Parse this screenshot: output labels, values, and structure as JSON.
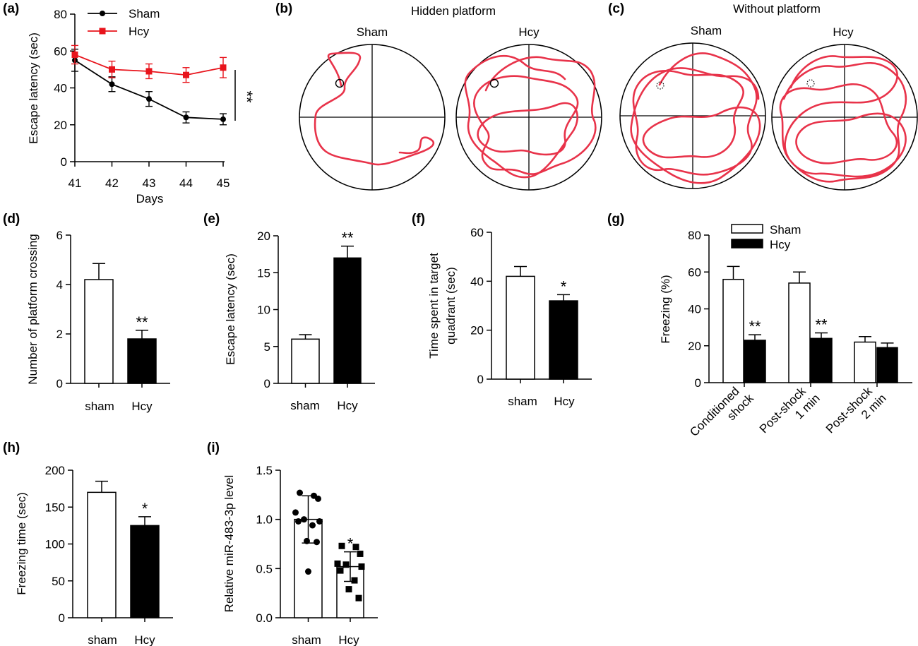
{
  "panels": {
    "a": "(a)",
    "b": "(b)",
    "c": "(c)",
    "d": "(d)",
    "e": "(e)",
    "f": "(f)",
    "g": "(g)",
    "h": "(h)",
    "i": "(i)"
  },
  "colors": {
    "sham": "#000000",
    "hcy": "#e8141c",
    "track": "#e8334a"
  },
  "chart_data": [
    {
      "id": "a",
      "type": "line",
      "xlabel": "Days",
      "ylabel": "Escape latency (sec)",
      "x": [
        41,
        42,
        43,
        44,
        45
      ],
      "ylim": [
        0,
        80
      ],
      "yticks": [
        0,
        20,
        40,
        60,
        80
      ],
      "series": [
        {
          "name": "Sham",
          "values": [
            55,
            42,
            34,
            24,
            23
          ],
          "errors": [
            6,
            4,
            4,
            3,
            3
          ],
          "marker": "circle",
          "color": "#000000"
        },
        {
          "name": "Hcy",
          "values": [
            58,
            50,
            49,
            47,
            51
          ],
          "errors": [
            5,
            4.5,
            4,
            4,
            5.5
          ],
          "marker": "square",
          "color": "#e8141c"
        }
      ],
      "annotation": "**",
      "legend": "top-left"
    },
    {
      "id": "d",
      "type": "bar",
      "ylabel": "Number of platform crossing",
      "categories": [
        "sham",
        "Hcy"
      ],
      "values": [
        4.2,
        1.8
      ],
      "errors": [
        0.65,
        0.35
      ],
      "fills": [
        "#ffffff",
        "#000000"
      ],
      "ylim": [
        0,
        6
      ],
      "yticks": [
        0,
        2,
        4,
        6
      ],
      "sig": [
        "",
        "**"
      ]
    },
    {
      "id": "e",
      "type": "bar",
      "ylabel": "Escape latency (sec)",
      "categories": [
        "sham",
        "Hcy"
      ],
      "values": [
        6,
        17
      ],
      "errors": [
        0.6,
        1.6
      ],
      "fills": [
        "#ffffff",
        "#000000"
      ],
      "ylim": [
        0,
        20
      ],
      "yticks": [
        0,
        5,
        10,
        15,
        20
      ],
      "sig": [
        "",
        "**"
      ]
    },
    {
      "id": "f",
      "type": "bar",
      "ylabel": "Time spent in target quadrant (sec)",
      "ylabel_lines": [
        "Time spent in target",
        "quadrant (sec)"
      ],
      "categories": [
        "sham",
        "Hcy"
      ],
      "values": [
        42,
        32
      ],
      "errors": [
        4,
        2.5
      ],
      "fills": [
        "#ffffff",
        "#000000"
      ],
      "ylim": [
        0,
        60
      ],
      "yticks": [
        0,
        20,
        40,
        60
      ],
      "sig": [
        "",
        "*"
      ]
    },
    {
      "id": "g",
      "type": "bar",
      "ylabel": "Freezing (%)",
      "categories": [
        [
          "Conditioned",
          "shock"
        ],
        [
          "Post-shock",
          "1 min"
        ],
        [
          "Post-shock",
          "2 min"
        ]
      ],
      "series": [
        {
          "name": "Sham",
          "values": [
            56,
            54,
            22
          ],
          "errors": [
            7,
            6,
            3
          ],
          "fill": "#ffffff"
        },
        {
          "name": "Hcy",
          "values": [
            23,
            24,
            19
          ],
          "errors": [
            3,
            3,
            2.5
          ],
          "fill": "#000000"
        }
      ],
      "sig": [
        [
          "",
          "**"
        ],
        [
          "",
          "**"
        ],
        [
          "",
          ""
        ]
      ],
      "ylim": [
        0,
        80
      ],
      "yticks": [
        0,
        20,
        40,
        60,
        80
      ],
      "legend": "top"
    },
    {
      "id": "h",
      "type": "bar",
      "ylabel": "Freezing time (sec)",
      "categories": [
        "sham",
        "Hcy"
      ],
      "values": [
        170,
        125
      ],
      "errors": [
        15,
        12
      ],
      "fills": [
        "#ffffff",
        "#000000"
      ],
      "ylim": [
        0,
        200
      ],
      "yticks": [
        0,
        50,
        100,
        150,
        200
      ],
      "sig": [
        "",
        "*"
      ]
    },
    {
      "id": "i",
      "type": "bar",
      "ylabel": "Relative miR-483-3p level",
      "categories": [
        "sham",
        "Hcy"
      ],
      "values": [
        1.0,
        0.52
      ],
      "errors": [
        0.24,
        0.15
      ],
      "fills": [
        "#ffffff",
        "#ffffff"
      ],
      "ylim": [
        0,
        1.5
      ],
      "yticks": [
        "0.0",
        "0.5",
        "1.0",
        "1.5"
      ],
      "sig": [
        "",
        "*"
      ],
      "points": [
        {
          "group": "sham",
          "marker": "circle",
          "values": [
            1.27,
            1.24,
            1.21,
            1.07,
            1.0,
            0.98,
            0.98,
            0.94,
            0.78,
            0.77,
            0.47
          ]
        },
        {
          "group": "Hcy",
          "marker": "square",
          "values": [
            0.73,
            0.72,
            0.65,
            0.55,
            0.54,
            0.52,
            0.48,
            0.38,
            0.29,
            0.2
          ]
        }
      ]
    }
  ],
  "swim": {
    "b_title": "Hidden platform",
    "c_title": "Without platform",
    "arenas": [
      {
        "id": "b-sham",
        "label": "Sham",
        "platform": "solid"
      },
      {
        "id": "b-hcy",
        "label": "Hcy",
        "platform": "solid"
      },
      {
        "id": "c-sham",
        "label": "Sham",
        "platform": "dotted"
      },
      {
        "id": "c-hcy",
        "label": "Hcy",
        "platform": "dotted"
      }
    ]
  }
}
